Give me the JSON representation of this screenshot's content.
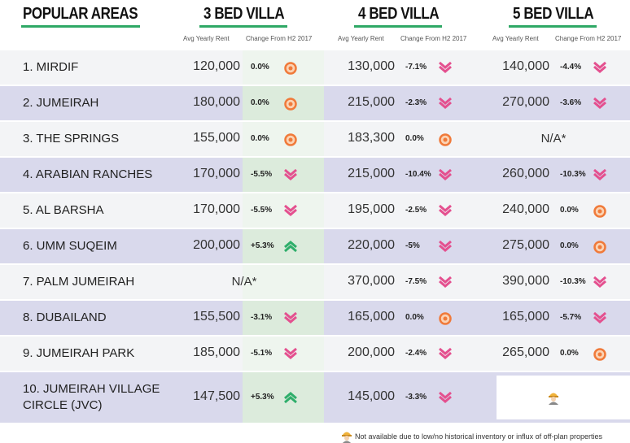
{
  "header": {
    "title": "POPULAR AREAS",
    "columns": [
      {
        "title": "3 BED VILLA",
        "rent_label": "Avg Yearly Rent",
        "change_label": "Change From H2 2017"
      },
      {
        "title": "4 BED VILLA",
        "rent_label": "Avg Yearly Rent",
        "change_label": "Change From H2 2017"
      },
      {
        "title": "5 BED VILLA",
        "rent_label": "Avg Yearly Rent",
        "change_label": "Change From H2 2017"
      }
    ]
  },
  "rows": [
    {
      "area": "1. MIRDIF",
      "cells": [
        {
          "rent": "120,000",
          "change": "0.0%"
        },
        {
          "rent": "130,000",
          "change": "-7.1%"
        },
        {
          "rent": "140,000",
          "change": "-4.4%"
        }
      ]
    },
    {
      "area": "2. JUMEIRAH",
      "cells": [
        {
          "rent": "180,000",
          "change": "0.0%"
        },
        {
          "rent": "215,000",
          "change": "-2.3%"
        },
        {
          "rent": "270,000",
          "change": "-3.6%"
        }
      ]
    },
    {
      "area": "3. THE SPRINGS",
      "cells": [
        {
          "rent": "155,000",
          "change": "0.0%"
        },
        {
          "rent": "183,300",
          "change": "0.0%"
        },
        {
          "na": "N/A*"
        }
      ]
    },
    {
      "area": "4. ARABIAN RANCHES",
      "cells": [
        {
          "rent": "170,000",
          "change": "-5.5%"
        },
        {
          "rent": "215,000",
          "change": "-10.4%"
        },
        {
          "rent": "260,000",
          "change": "-10.3%"
        }
      ]
    },
    {
      "area": "5. AL BARSHA",
      "cells": [
        {
          "rent": "170,000",
          "change": "-5.5%"
        },
        {
          "rent": "195,000",
          "change": "-2.5%"
        },
        {
          "rent": "240,000",
          "change": "0.0%"
        }
      ]
    },
    {
      "area": "6. UMM SUQEIM",
      "cells": [
        {
          "rent": "200,000",
          "change": "+5.3%"
        },
        {
          "rent": "220,000",
          "change": "-5%"
        },
        {
          "rent": "275,000",
          "change": "0.0%"
        }
      ]
    },
    {
      "area": "7. PALM JUMEIRAH",
      "cells": [
        {
          "na": "N/A*"
        },
        {
          "rent": "370,000",
          "change": "-7.5%"
        },
        {
          "rent": "390,000",
          "change": "-10.3%"
        }
      ]
    },
    {
      "area": "8. DUBAILAND",
      "cells": [
        {
          "rent": "155,500",
          "change": "-3.1%"
        },
        {
          "rent": "165,000",
          "change": "0.0%"
        },
        {
          "rent": "165,000",
          "change": "-5.7%"
        }
      ]
    },
    {
      "area": "9. JUMEIRAH PARK",
      "cells": [
        {
          "rent": "185,000",
          "change": "-5.1%"
        },
        {
          "rent": "200,000",
          "change": "-2.4%"
        },
        {
          "rent": "265,000",
          "change": "0.0%"
        }
      ]
    },
    {
      "area": "10. JUMEIRAH VILLAGE\nCIRCLE (JVC)",
      "cells": [
        {
          "rent": "147,500",
          "change": "+5.3%"
        },
        {
          "rent": "145,000",
          "change": "-3.3%"
        },
        null
      ]
    }
  ],
  "footnote": "Not available due to low/no historical inventory or influx of off-plan properties"
}
